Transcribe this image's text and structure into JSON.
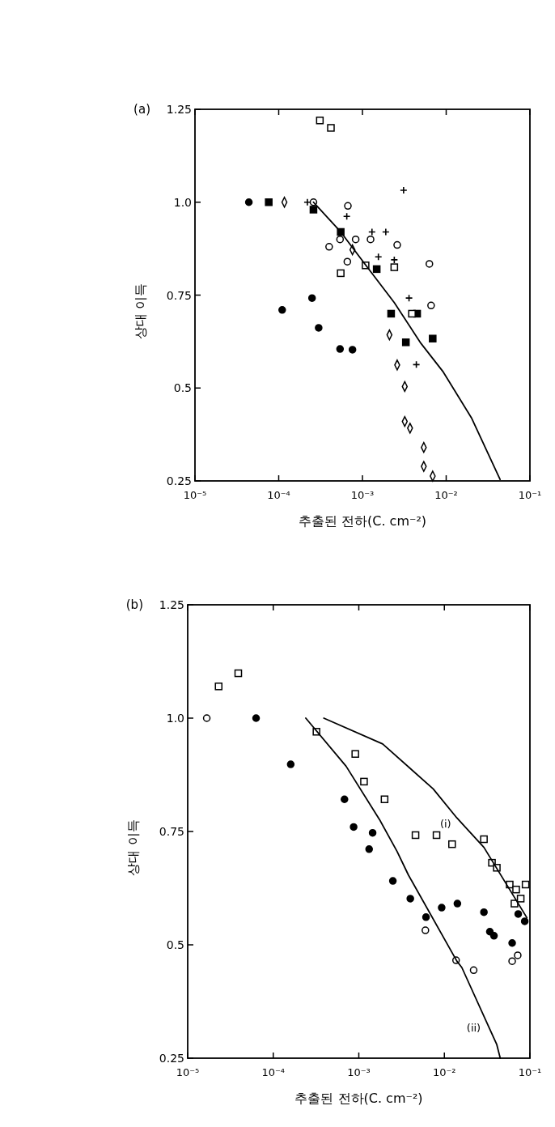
{
  "chart_data": [
    {
      "type": "scatter",
      "title": "(a)",
      "xlabel": "추출된 전하(C. cm⁻²)",
      "ylabel": "상대 이득",
      "log": "x",
      "xlim": [
        1e-05,
        0.1
      ],
      "ylim": [
        0.25,
        1.25
      ],
      "xticks": [
        {
          "value": 1e-05,
          "label": "10⁻⁵"
        },
        {
          "value": 0.0001,
          "label": "10⁻⁴"
        },
        {
          "value": 0.001,
          "label": "10⁻³"
        },
        {
          "value": 0.01,
          "label": "10⁻²"
        },
        {
          "value": 0.1,
          "label": "10⁻¹"
        }
      ],
      "yticks": [
        0.25,
        0.5,
        0.75,
        {
          "value": 1.0,
          "label": "1.0"
        },
        1.25
      ],
      "series": [
        {
          "marker": "circle",
          "color": "#000000",
          "x": [
            4.4e-05,
            0.00011,
            0.00025,
            0.0003,
            0.00054,
            0.00076
          ],
          "values": [
            1.0,
            0.71,
            0.742,
            0.662,
            0.605,
            0.603
          ]
        },
        {
          "marker": "square",
          "color": "#000000",
          "x": [
            7.6e-05,
            0.00026,
            0.00055,
            0.00148,
            0.0022,
            0.0045,
            0.0033,
            0.0069
          ],
          "values": [
            1.0,
            0.98,
            0.92,
            0.82,
            0.7,
            0.7,
            0.623,
            0.633
          ]
        },
        {
          "marker": "square",
          "color": "#ffffff",
          "x": [
            0.00031,
            0.00042,
            0.00055,
            0.00109,
            0.0024,
            0.0039
          ],
          "values": [
            1.22,
            1.2,
            0.809,
            0.83,
            0.825,
            0.7
          ]
        },
        {
          "marker": "circle",
          "color": "#ffffff",
          "x": [
            0.00026,
            0.00067,
            0.0004,
            0.00054,
            0.00083,
            0.00125,
            0.0026,
            0.00066,
            0.0063,
            0.0066
          ],
          "values": [
            1.0,
            0.99,
            0.88,
            0.9,
            0.9,
            0.9,
            0.885,
            0.84,
            0.834,
            0.722
          ]
        },
        {
          "marker": "cross",
          "color": "#000000",
          "x": [
            0.00022,
            0.00065,
            0.0013,
            0.0019,
            0.00155,
            0.0024,
            0.0031,
            0.0036,
            0.0044
          ],
          "values": [
            1.0,
            0.962,
            0.92,
            0.92,
            0.853,
            0.845,
            1.032,
            0.742,
            0.563
          ]
        },
        {
          "marker": "diamond",
          "color": "#ffffff",
          "x": [
            0.000117,
            0.00076,
            0.0021,
            0.0026,
            0.0032,
            0.0032,
            0.0037,
            0.0054,
            0.0054,
            0.0069
          ],
          "values": [
            1.0,
            0.872,
            0.643,
            0.562,
            0.504,
            0.41,
            0.392,
            0.34,
            0.289,
            0.263
          ]
        },
        {
          "type": "line",
          "marker": "none",
          "color": "#000000",
          "x": [
            0.00026,
            0.00055,
            0.0011,
            0.0024,
            0.005,
            0.0091,
            0.02,
            0.044
          ],
          "values": [
            1.0,
            0.92,
            0.83,
            0.73,
            0.62,
            0.545,
            0.42,
            0.254
          ]
        }
      ]
    },
    {
      "type": "scatter",
      "title": "(b)",
      "xlabel": "추출된 전하(C. cm⁻²)",
      "ylabel": "상대 이득",
      "log": "x",
      "xlim": [
        1e-05,
        0.1
      ],
      "ylim": [
        0.25,
        1.25
      ],
      "xticks": [
        {
          "value": 1e-05,
          "label": "10⁻⁵"
        },
        {
          "value": 0.0001,
          "label": "10⁻⁴"
        },
        {
          "value": 0.001,
          "label": "10⁻³"
        },
        {
          "value": 0.01,
          "label": "10⁻²"
        },
        {
          "value": 0.1,
          "label": "10⁻¹"
        }
      ],
      "yticks": [
        0.25,
        0.5,
        0.75,
        {
          "value": 1.0,
          "label": "1.0"
        },
        1.25
      ],
      "annotations": [
        {
          "text": "(i)",
          "x": 0.014,
          "y": 0.78
        },
        {
          "text": "(ii)",
          "x": 0.031,
          "y": 0.33
        }
      ],
      "series": [
        {
          "marker": "circle",
          "color": "#ffffff",
          "x": [
            1.67e-05,
            0.006,
            0.0137,
            0.022,
            0.062,
            0.072
          ],
          "values": [
            1.0,
            0.532,
            0.466,
            0.444,
            0.464,
            0.477
          ]
        },
        {
          "marker": "square",
          "color": "#ffffff",
          "x": [
            2.3e-05,
            3.9e-05,
            0.00032,
            0.00091,
            0.00115,
            0.002,
            0.0046,
            0.0081,
            0.0123,
            0.029,
            0.036,
            0.041,
            0.058,
            0.069,
            0.089,
            0.066,
            0.078
          ],
          "values": [
            1.07,
            1.099,
            0.97,
            0.921,
            0.86,
            0.821,
            0.742,
            0.742,
            0.722,
            0.733,
            0.681,
            0.67,
            0.633,
            0.622,
            0.633,
            0.591,
            0.602
          ]
        },
        {
          "marker": "circle",
          "color": "#000000",
          "x": [
            6.3e-05,
            0.00016,
            0.00068,
            0.00087,
            0.00145,
            0.00132,
            0.0025,
            0.004,
            0.0061,
            0.0093,
            0.0142,
            0.029,
            0.034,
            0.038,
            0.062,
            0.073,
            0.087
          ],
          "values": [
            1.0,
            0.898,
            0.821,
            0.76,
            0.747,
            0.711,
            0.641,
            0.602,
            0.561,
            0.582,
            0.591,
            0.572,
            0.529,
            0.52,
            0.504,
            0.568,
            0.552
          ]
        },
        {
          "type": "line",
          "marker": "none",
          "color": "#000000",
          "x": [
            0.00039,
            0.0019,
            0.0074,
            0.014,
            0.029,
            0.092
          ],
          "values": [
            1.0,
            0.943,
            0.844,
            0.78,
            0.715,
            0.56
          ]
        },
        {
          "type": "line",
          "marker": "none",
          "color": "#000000",
          "x": [
            0.00024,
            0.00071,
            0.00175,
            0.0028,
            0.0038,
            0.014,
            0.016,
            0.041,
            0.045
          ],
          "values": [
            1.0,
            0.894,
            0.776,
            0.706,
            0.654,
            0.464,
            0.45,
            0.28,
            0.25
          ]
        }
      ]
    }
  ]
}
